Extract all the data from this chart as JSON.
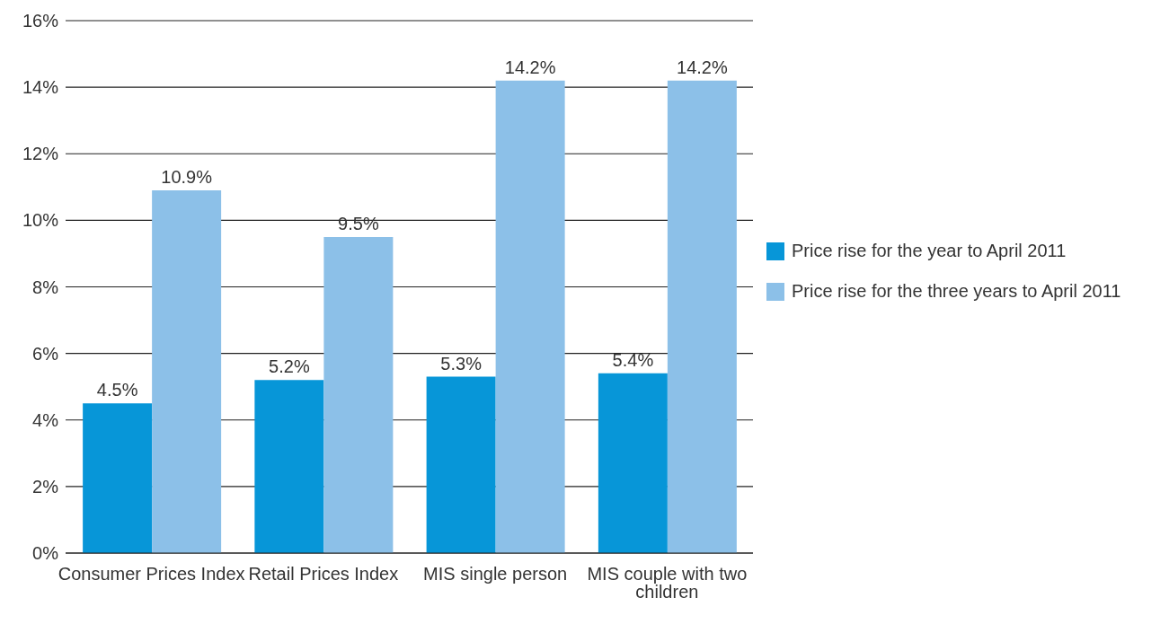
{
  "chart_data": {
    "type": "bar",
    "categories": [
      "Consumer Prices Index",
      "Retail Prices Index",
      "MIS single person",
      "MIS couple with two children"
    ],
    "series": [
      {
        "name": "Price rise for the year to April 2011",
        "color": "#0796d8",
        "values": [
          4.5,
          5.2,
          5.3,
          5.4
        ],
        "value_labels": [
          "4.5%",
          "5.2%",
          "5.3%",
          "5.4%"
        ]
      },
      {
        "name": "Price rise for the three years to April 2011",
        "color": "#8cc0e8",
        "values": [
          10.9,
          9.5,
          14.2,
          14.2
        ],
        "value_labels": [
          "10.9%",
          "9.5%",
          "14.2%",
          "14.2%"
        ]
      }
    ],
    "ylim": [
      0,
      16
    ],
    "yticks": [
      {
        "value": 0,
        "label": "0%"
      },
      {
        "value": 2,
        "label": "2%"
      },
      {
        "value": 4,
        "label": "4%"
      },
      {
        "value": 6,
        "label": "6%"
      },
      {
        "value": 8,
        "label": "8%"
      },
      {
        "value": 10,
        "label": "10%"
      },
      {
        "value": 12,
        "label": "12%"
      },
      {
        "value": 14,
        "label": "14%"
      },
      {
        "value": 16,
        "label": "16%"
      }
    ],
    "grid": "y",
    "legend": "right"
  }
}
